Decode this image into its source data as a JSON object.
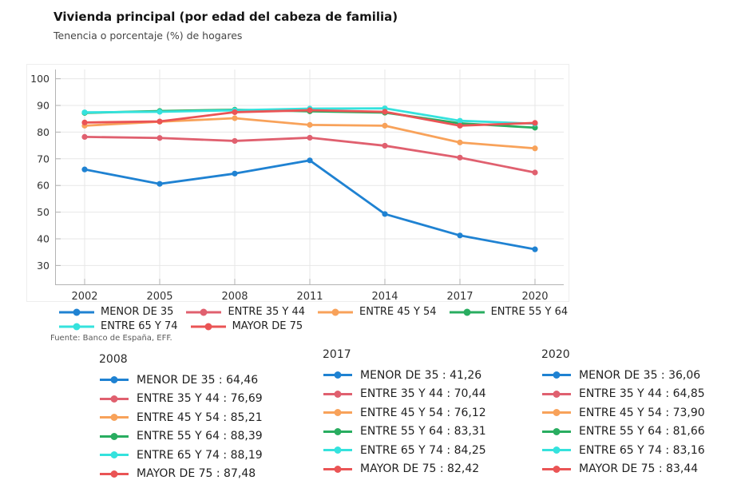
{
  "header": {
    "title": "Vivienda principal (por edad del cabeza de familia)",
    "subtitle": "Tenencia o porcentaje (%) de hogares"
  },
  "source": "Fuente: Banco de España, EFF.",
  "chart_data": {
    "type": "line",
    "x": [
      "2002",
      "2005",
      "2008",
      "2011",
      "2014",
      "2017",
      "2020"
    ],
    "ylim": [
      30,
      100
    ],
    "yticks": [
      100,
      90,
      80,
      70,
      60,
      50,
      40,
      30
    ],
    "grid": true,
    "legend_position": "bottom-left",
    "series": [
      {
        "name": "MENOR DE 35",
        "color": "#1f82d2",
        "values": [
          66.0,
          60.6,
          64.46,
          69.4,
          49.3,
          41.26,
          36.06
        ]
      },
      {
        "name": "ENTRE 35 Y 44",
        "color": "#e0606f",
        "values": [
          78.2,
          77.8,
          76.69,
          77.9,
          74.9,
          70.44,
          64.85
        ]
      },
      {
        "name": "ENTRE 45 Y 54",
        "color": "#f8a25a",
        "values": [
          82.4,
          83.9,
          85.21,
          82.7,
          82.4,
          76.12,
          73.9
        ]
      },
      {
        "name": "ENTRE 55 Y 64",
        "color": "#29ad60",
        "values": [
          87.2,
          87.9,
          88.39,
          87.8,
          87.3,
          83.31,
          81.66
        ]
      },
      {
        "name": "ENTRE 65 Y 74",
        "color": "#35e2dd",
        "values": [
          87.4,
          87.6,
          88.19,
          88.8,
          88.9,
          84.25,
          83.16
        ]
      },
      {
        "name": "MAYOR DE 75",
        "color": "#ea5455",
        "values": [
          83.6,
          84.0,
          87.48,
          88.2,
          87.6,
          82.42,
          83.44
        ]
      }
    ]
  },
  "detail_boxes": [
    {
      "year": "2008",
      "items": [
        {
          "series": "MENOR DE 35",
          "value": "64,46"
        },
        {
          "series": "ENTRE 35 Y 44",
          "value": "76,69"
        },
        {
          "series": "ENTRE 45 Y 54",
          "value": "85,21"
        },
        {
          "series": "ENTRE 55 Y 64",
          "value": "88,39"
        },
        {
          "series": "ENTRE 65 Y 74",
          "value": "88,19"
        },
        {
          "series": "MAYOR DE 75",
          "value": "87,48"
        }
      ]
    },
    {
      "year": "2017",
      "items": [
        {
          "series": "MENOR DE 35",
          "value": "41,26"
        },
        {
          "series": "ENTRE 35 Y 44",
          "value": "70,44"
        },
        {
          "series": "ENTRE 45 Y 54",
          "value": "76,12"
        },
        {
          "series": "ENTRE 55 Y 64",
          "value": "83,31"
        },
        {
          "series": "ENTRE 65 Y 74",
          "value": "84,25"
        },
        {
          "series": "MAYOR DE 75",
          "value": "82,42"
        }
      ]
    },
    {
      "year": "2020",
      "items": [
        {
          "series": "MENOR DE 35",
          "value": "36,06"
        },
        {
          "series": "ENTRE 35 Y 44",
          "value": "64,85"
        },
        {
          "series": "ENTRE 45 Y 54",
          "value": "73,90"
        },
        {
          "series": "ENTRE 55 Y 64",
          "value": "81,66"
        },
        {
          "series": "ENTRE 65 Y 74",
          "value": "83,16"
        },
        {
          "series": "MAYOR DE 75",
          "value": "83,44"
        }
      ]
    }
  ]
}
